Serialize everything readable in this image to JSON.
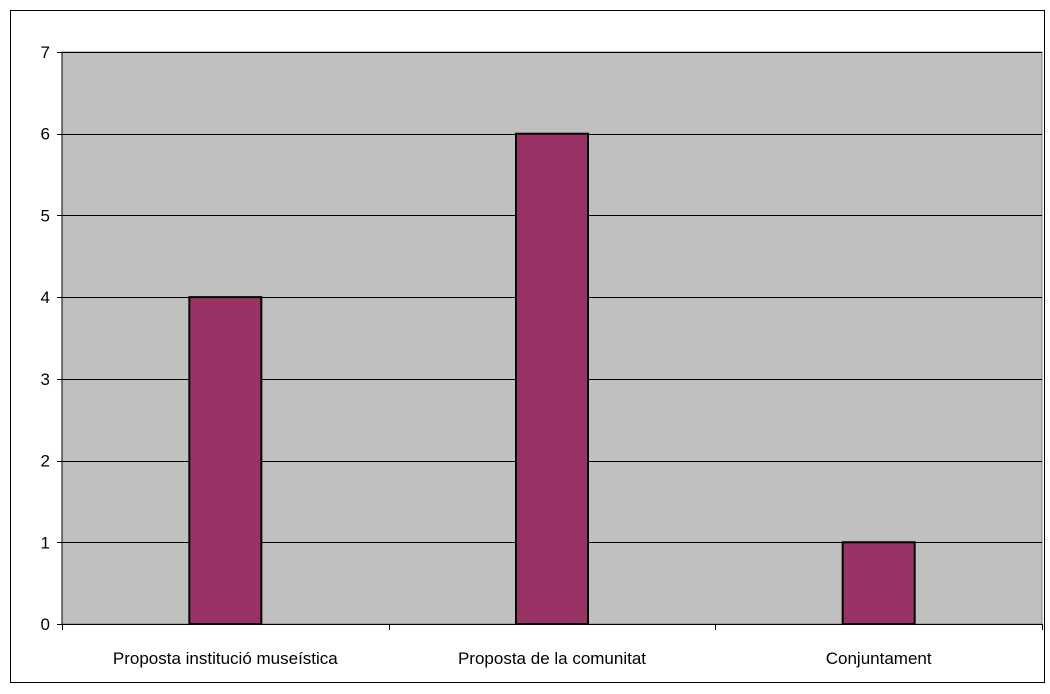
{
  "chart_data": {
    "type": "bar",
    "title": "",
    "xlabel": "",
    "ylabel": "",
    "categories": [
      "Proposta institució museística",
      "Proposta de la comunitat",
      "Conjuntament"
    ],
    "values": [
      4,
      6,
      1
    ],
    "ylim": [
      0,
      7
    ],
    "yticks": [
      "0",
      "1",
      "2",
      "3",
      "4",
      "5",
      "6",
      "7"
    ],
    "grid": true,
    "legend": "none",
    "colors": {
      "bar": "#993366",
      "plot_background": "#C0C0C0",
      "gridline": "#000000",
      "outline": "#000000"
    }
  }
}
